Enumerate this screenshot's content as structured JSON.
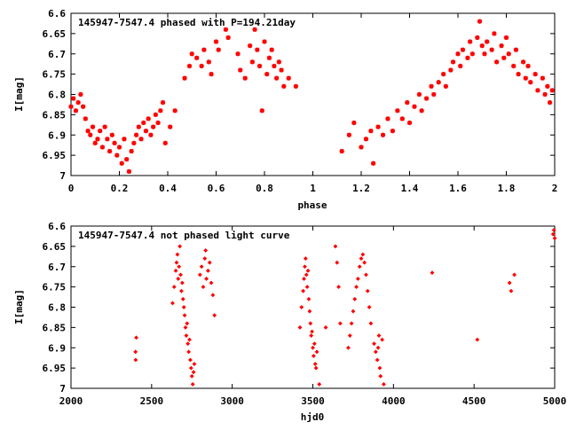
{
  "colors": {
    "data": "#ff0000",
    "axes": "#000000",
    "background": "#ffffff"
  },
  "chart_data": [
    {
      "type": "scatter",
      "title": "145947-7547.4 phased with P=194.21day",
      "xlabel": "phase",
      "ylabel": "I[mag]",
      "xlim": [
        0,
        2
      ],
      "ylim": [
        6.6,
        7.0
      ],
      "y_inverted": true,
      "grid": false,
      "x_ticks": [
        "0",
        "0.2",
        "0.4",
        "0.6",
        "0.8",
        "1",
        "1.2",
        "1.4",
        "1.6",
        "1.8",
        "2"
      ],
      "x_tick_values": [
        0,
        0.2,
        0.4,
        0.6,
        0.8,
        1.0,
        1.2,
        1.4,
        1.6,
        1.8,
        2.0
      ],
      "y_ticks": [
        "6.6",
        "6.65",
        "6.7",
        "6.75",
        "6.8",
        "6.85",
        "6.9",
        "6.95",
        "7"
      ],
      "y_tick_values": [
        6.6,
        6.65,
        6.7,
        6.75,
        6.8,
        6.85,
        6.9,
        6.95,
        7.0
      ],
      "marker": "star",
      "series": [
        {
          "points": [
            [
              0.0,
              6.83
            ],
            [
              0.01,
              6.81
            ],
            [
              0.02,
              6.84
            ],
            [
              0.03,
              6.82
            ],
            [
              0.04,
              6.8
            ],
            [
              0.05,
              6.83
            ],
            [
              0.06,
              6.86
            ],
            [
              0.07,
              6.89
            ],
            [
              0.08,
              6.9
            ],
            [
              0.09,
              6.88
            ],
            [
              0.1,
              6.92
            ],
            [
              0.11,
              6.91
            ],
            [
              0.12,
              6.89
            ],
            [
              0.13,
              6.93
            ],
            [
              0.14,
              6.88
            ],
            [
              0.15,
              6.91
            ],
            [
              0.16,
              6.94
            ],
            [
              0.17,
              6.9
            ],
            [
              0.18,
              6.92
            ],
            [
              0.19,
              6.95
            ],
            [
              0.2,
              6.93
            ],
            [
              0.21,
              6.97
            ],
            [
              0.22,
              6.91
            ],
            [
              0.23,
              6.96
            ],
            [
              0.24,
              6.99
            ],
            [
              0.25,
              6.94
            ],
            [
              0.26,
              6.92
            ],
            [
              0.27,
              6.9
            ],
            [
              0.28,
              6.88
            ],
            [
              0.29,
              6.91
            ],
            [
              0.3,
              6.87
            ],
            [
              0.31,
              6.89
            ],
            [
              0.32,
              6.86
            ],
            [
              0.33,
              6.9
            ],
            [
              0.34,
              6.88
            ],
            [
              0.35,
              6.85
            ],
            [
              0.36,
              6.87
            ],
            [
              0.37,
              6.84
            ],
            [
              0.38,
              6.82
            ],
            [
              0.39,
              6.92
            ],
            [
              0.41,
              6.88
            ],
            [
              0.43,
              6.84
            ],
            [
              0.47,
              6.76
            ],
            [
              0.49,
              6.73
            ],
            [
              0.5,
              6.7
            ],
            [
              0.52,
              6.71
            ],
            [
              0.54,
              6.73
            ],
            [
              0.55,
              6.69
            ],
            [
              0.57,
              6.72
            ],
            [
              0.58,
              6.75
            ],
            [
              0.6,
              6.67
            ],
            [
              0.61,
              6.69
            ],
            [
              0.64,
              6.64
            ],
            [
              0.65,
              6.66
            ],
            [
              0.69,
              6.7
            ],
            [
              0.7,
              6.74
            ],
            [
              0.72,
              6.76
            ],
            [
              0.74,
              6.68
            ],
            [
              0.75,
              6.72
            ],
            [
              0.76,
              6.64
            ],
            [
              0.77,
              6.69
            ],
            [
              0.78,
              6.73
            ],
            [
              0.79,
              6.84
            ],
            [
              0.8,
              6.67
            ],
            [
              0.81,
              6.75
            ],
            [
              0.82,
              6.71
            ],
            [
              0.83,
              6.69
            ],
            [
              0.84,
              6.73
            ],
            [
              0.85,
              6.76
            ],
            [
              0.86,
              6.72
            ],
            [
              0.87,
              6.74
            ],
            [
              0.88,
              6.78
            ],
            [
              0.9,
              6.76
            ],
            [
              0.93,
              6.78
            ],
            [
              1.12,
              6.94
            ],
            [
              1.15,
              6.9
            ],
            [
              1.17,
              6.87
            ],
            [
              1.2,
              6.93
            ],
            [
              1.22,
              6.91
            ],
            [
              1.24,
              6.89
            ],
            [
              1.25,
              6.97
            ],
            [
              1.27,
              6.88
            ],
            [
              1.29,
              6.9
            ],
            [
              1.31,
              6.86
            ],
            [
              1.33,
              6.89
            ],
            [
              1.35,
              6.84
            ],
            [
              1.37,
              6.86
            ],
            [
              1.39,
              6.82
            ],
            [
              1.4,
              6.87
            ],
            [
              1.42,
              6.83
            ],
            [
              1.44,
              6.8
            ],
            [
              1.45,
              6.84
            ],
            [
              1.47,
              6.81
            ],
            [
              1.49,
              6.78
            ],
            [
              1.5,
              6.8
            ],
            [
              1.52,
              6.77
            ],
            [
              1.54,
              6.75
            ],
            [
              1.55,
              6.78
            ],
            [
              1.57,
              6.74
            ],
            [
              1.58,
              6.72
            ],
            [
              1.6,
              6.7
            ],
            [
              1.61,
              6.73
            ],
            [
              1.62,
              6.69
            ],
            [
              1.64,
              6.71
            ],
            [
              1.65,
              6.67
            ],
            [
              1.66,
              6.7
            ],
            [
              1.68,
              6.66
            ],
            [
              1.69,
              6.62
            ],
            [
              1.7,
              6.68
            ],
            [
              1.71,
              6.7
            ],
            [
              1.72,
              6.67
            ],
            [
              1.74,
              6.69
            ],
            [
              1.75,
              6.65
            ],
            [
              1.76,
              6.72
            ],
            [
              1.78,
              6.68
            ],
            [
              1.79,
              6.71
            ],
            [
              1.8,
              6.66
            ],
            [
              1.81,
              6.7
            ],
            [
              1.83,
              6.73
            ],
            [
              1.84,
              6.69
            ],
            [
              1.85,
              6.75
            ],
            [
              1.87,
              6.72
            ],
            [
              1.88,
              6.76
            ],
            [
              1.89,
              6.73
            ],
            [
              1.9,
              6.77
            ],
            [
              1.92,
              6.75
            ],
            [
              1.93,
              6.79
            ],
            [
              1.95,
              6.76
            ],
            [
              1.96,
              6.8
            ],
            [
              1.97,
              6.78
            ],
            [
              1.98,
              6.82
            ],
            [
              1.99,
              6.79
            ]
          ]
        }
      ]
    },
    {
      "type": "scatter",
      "title": "145947-7547.4 not phased light curve",
      "xlabel": "hjd0",
      "ylabel": "I[mag]",
      "xlim": [
        2000,
        5000
      ],
      "ylim": [
        6.6,
        7.0
      ],
      "y_inverted": true,
      "grid": false,
      "x_ticks": [
        "2000",
        "2500",
        "3000",
        "3500",
        "4000",
        "4500",
        "5000"
      ],
      "x_tick_values": [
        2000,
        2500,
        3000,
        3500,
        4000,
        4500,
        5000
      ],
      "y_ticks": [
        "6.6",
        "6.65",
        "6.7",
        "6.75",
        "6.8",
        "6.85",
        "6.9",
        "6.95",
        "7"
      ],
      "y_tick_values": [
        6.6,
        6.65,
        6.7,
        6.75,
        6.8,
        6.85,
        6.9,
        6.95,
        7.0
      ],
      "marker": "diamond",
      "series": [
        {
          "points": [
            [
              2400,
              6.91
            ],
            [
              2401,
              6.93
            ],
            [
              2405,
              6.875
            ],
            [
              2630,
              6.79
            ],
            [
              2640,
              6.75
            ],
            [
              2650,
              6.71
            ],
            [
              2655,
              6.69
            ],
            [
              2660,
              6.67
            ],
            [
              2665,
              6.73
            ],
            [
              2670,
              6.7
            ],
            [
              2675,
              6.65
            ],
            [
              2680,
              6.72
            ],
            [
              2685,
              6.76
            ],
            [
              2690,
              6.74
            ],
            [
              2695,
              6.78
            ],
            [
              2700,
              6.8
            ],
            [
              2705,
              6.82
            ],
            [
              2710,
              6.85
            ],
            [
              2715,
              6.87
            ],
            [
              2720,
              6.84
            ],
            [
              2725,
              6.89
            ],
            [
              2730,
              6.91
            ],
            [
              2735,
              6.88
            ],
            [
              2740,
              6.93
            ],
            [
              2745,
              6.95
            ],
            [
              2750,
              6.97
            ],
            [
              2755,
              6.99
            ],
            [
              2760,
              6.96
            ],
            [
              2765,
              6.94
            ],
            [
              2800,
              6.72
            ],
            [
              2810,
              6.7
            ],
            [
              2820,
              6.75
            ],
            [
              2830,
              6.68
            ],
            [
              2835,
              6.66
            ],
            [
              2840,
              6.73
            ],
            [
              2850,
              6.71
            ],
            [
              2860,
              6.69
            ],
            [
              2870,
              6.74
            ],
            [
              2880,
              6.77
            ],
            [
              2890,
              6.82
            ],
            [
              3420,
              6.85
            ],
            [
              3430,
              6.8
            ],
            [
              3440,
              6.76
            ],
            [
              3445,
              6.73
            ],
            [
              3450,
              6.7
            ],
            [
              3455,
              6.68
            ],
            [
              3460,
              6.72
            ],
            [
              3465,
              6.75
            ],
            [
              3470,
              6.71
            ],
            [
              3475,
              6.78
            ],
            [
              3480,
              6.81
            ],
            [
              3485,
              6.84
            ],
            [
              3490,
              6.87
            ],
            [
              3495,
              6.86
            ],
            [
              3500,
              6.9
            ],
            [
              3505,
              6.92
            ],
            [
              3510,
              6.89
            ],
            [
              3515,
              6.94
            ],
            [
              3520,
              6.95
            ],
            [
              3525,
              6.91
            ],
            [
              3540,
              6.99
            ],
            [
              3580,
              6.85
            ],
            [
              3640,
              6.65
            ],
            [
              3650,
              6.69
            ],
            [
              3660,
              6.75
            ],
            [
              3670,
              6.84
            ],
            [
              3720,
              6.9
            ],
            [
              3730,
              6.87
            ],
            [
              3740,
              6.84
            ],
            [
              3750,
              6.81
            ],
            [
              3760,
              6.78
            ],
            [
              3770,
              6.75
            ],
            [
              3780,
              6.73
            ],
            [
              3790,
              6.7
            ],
            [
              3800,
              6.68
            ],
            [
              3810,
              6.67
            ],
            [
              3820,
              6.69
            ],
            [
              3830,
              6.72
            ],
            [
              3840,
              6.76
            ],
            [
              3850,
              6.8
            ],
            [
              3860,
              6.84
            ],
            [
              3880,
              6.89
            ],
            [
              3890,
              6.91
            ],
            [
              3900,
              6.93
            ],
            [
              3905,
              6.9
            ],
            [
              3910,
              6.87
            ],
            [
              3915,
              6.95
            ],
            [
              3920,
              6.97
            ],
            [
              3930,
              6.88
            ],
            [
              3940,
              6.99
            ],
            [
              4240,
              6.715
            ],
            [
              4520,
              6.88
            ],
            [
              4720,
              6.74
            ],
            [
              4730,
              6.76
            ],
            [
              4750,
              6.72
            ],
            [
              4990,
              6.62
            ],
            [
              4995,
              6.61
            ],
            [
              5000,
              6.63
            ]
          ]
        }
      ]
    }
  ]
}
